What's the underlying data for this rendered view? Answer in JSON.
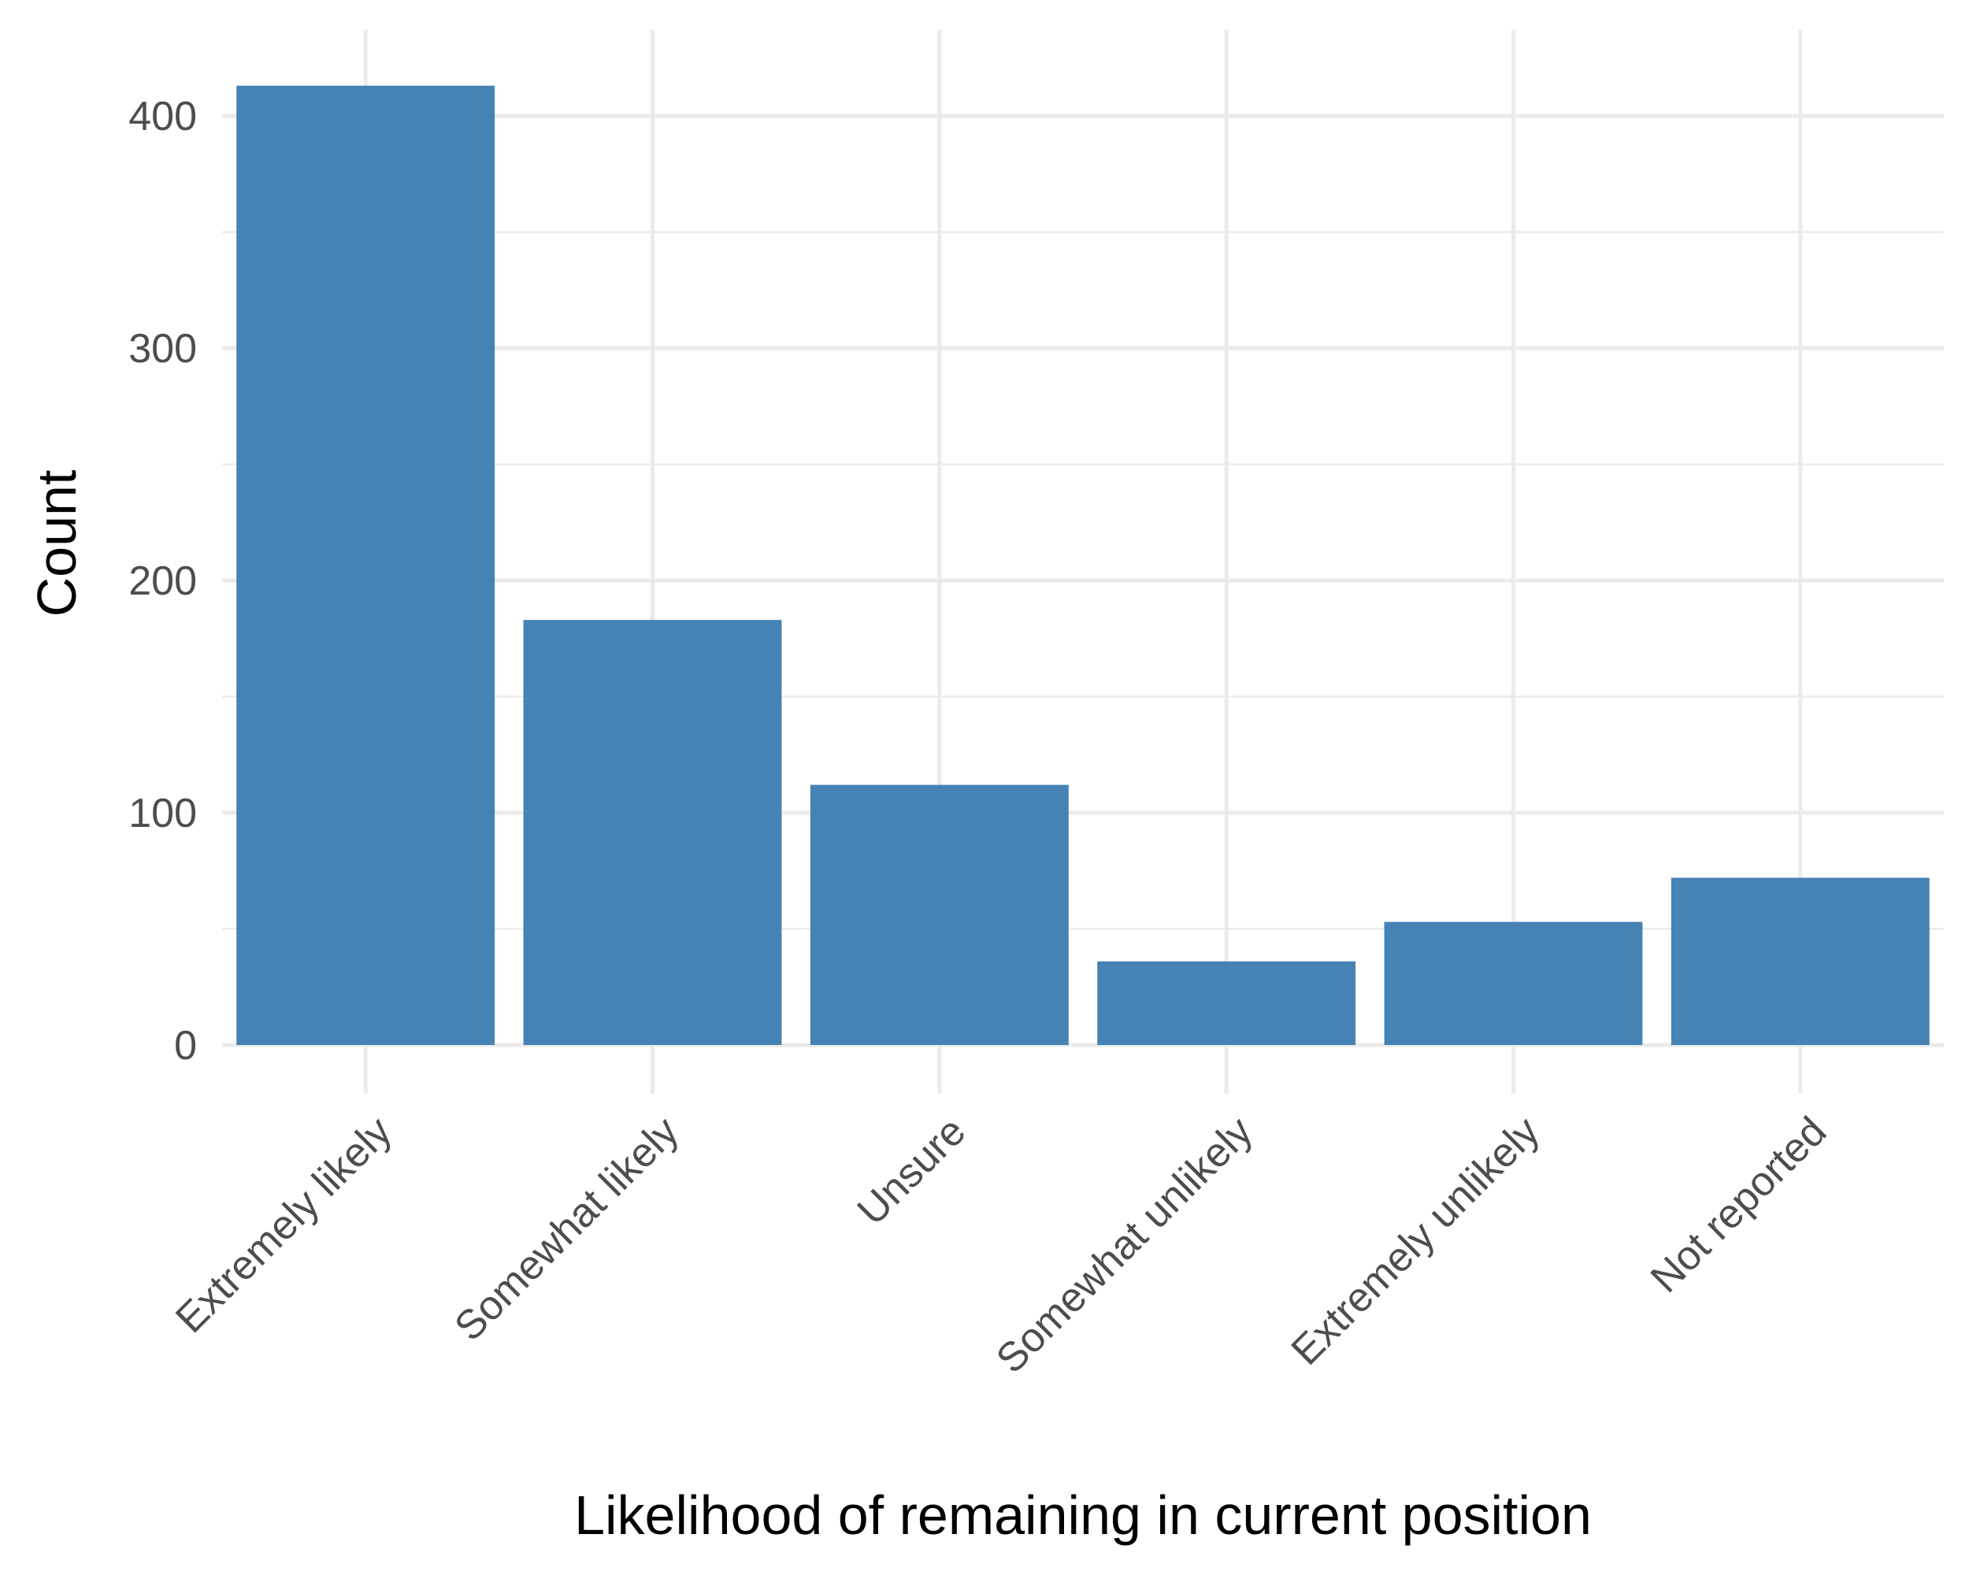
{
  "chart_data": {
    "type": "bar",
    "categories": [
      "Extremely likely",
      "Somewhat likely",
      "Unsure",
      "Somewhat unlikely",
      "Extremely unlikely",
      "Not reported"
    ],
    "values": [
      413,
      183,
      112,
      36,
      53,
      72
    ],
    "xlabel": "Likelihood of remaining in current position",
    "ylabel": "Count",
    "ylim": [
      0,
      437
    ],
    "yticks": [
      0,
      100,
      200,
      300,
      400
    ],
    "grid": true,
    "x_tick_rotation": 45,
    "colors": {
      "bar": "#4682b4",
      "grid": "#ebebeb"
    }
  }
}
